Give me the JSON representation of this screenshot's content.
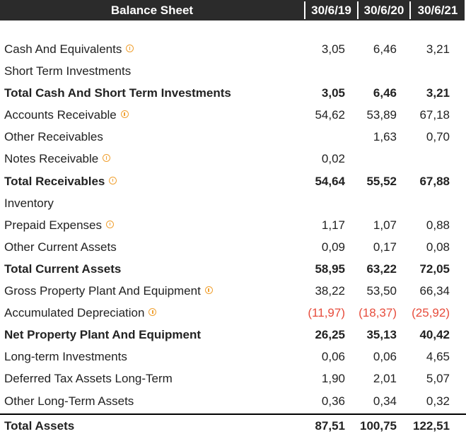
{
  "header": {
    "title": "Balance Sheet",
    "columns": [
      "30/6/19",
      "30/6/20",
      "30/6/21"
    ]
  },
  "colors": {
    "header_bg": "#2b2b2b",
    "negative": "#e74c3c",
    "info_icon": "#f0a030"
  },
  "rows": [
    {
      "label": "Cash And Equivalents",
      "info": true,
      "bold": false,
      "values": [
        "3,05",
        "6,46",
        "3,21"
      ]
    },
    {
      "label": "Short Term Investments",
      "info": false,
      "bold": false,
      "values": [
        "",
        "",
        ""
      ]
    },
    {
      "label": "Total Cash And Short Term Investments",
      "info": false,
      "bold": true,
      "values": [
        "3,05",
        "6,46",
        "3,21"
      ]
    },
    {
      "label": "Accounts Receivable",
      "info": true,
      "bold": false,
      "values": [
        "54,62",
        "53,89",
        "67,18"
      ]
    },
    {
      "label": "Other Receivables",
      "info": false,
      "bold": false,
      "values": [
        "",
        "1,63",
        "0,70"
      ]
    },
    {
      "label": "Notes Receivable",
      "info": true,
      "bold": false,
      "values": [
        "0,02",
        "",
        ""
      ]
    },
    {
      "label": "Total Receivables",
      "info": true,
      "bold": true,
      "values": [
        "54,64",
        "55,52",
        "67,88"
      ]
    },
    {
      "label": "Inventory",
      "info": false,
      "bold": false,
      "values": [
        "",
        "",
        ""
      ]
    },
    {
      "label": "Prepaid Expenses",
      "info": true,
      "bold": false,
      "values": [
        "1,17",
        "1,07",
        "0,88"
      ]
    },
    {
      "label": "Other Current Assets",
      "info": false,
      "bold": false,
      "values": [
        "0,09",
        "0,17",
        "0,08"
      ]
    },
    {
      "label": "Total Current Assets",
      "info": false,
      "bold": true,
      "values": [
        "58,95",
        "63,22",
        "72,05"
      ]
    },
    {
      "label": "Gross Property Plant And Equipment",
      "info": true,
      "bold": false,
      "values": [
        "38,22",
        "53,50",
        "66,34"
      ]
    },
    {
      "label": "Accumulated Depreciation",
      "info": true,
      "bold": false,
      "negative": true,
      "values": [
        "(11,97)",
        "(18,37)",
        "(25,92)"
      ]
    },
    {
      "label": "Net Property Plant And Equipment",
      "info": false,
      "bold": true,
      "values": [
        "26,25",
        "35,13",
        "40,42"
      ]
    },
    {
      "label": "Long-term Investments",
      "info": false,
      "bold": false,
      "values": [
        "0,06",
        "0,06",
        "4,65"
      ]
    },
    {
      "label": "Deferred Tax Assets Long-Term",
      "info": false,
      "bold": false,
      "values": [
        "1,90",
        "2,01",
        "5,07"
      ]
    },
    {
      "label": "Other Long-Term Assets",
      "info": false,
      "bold": false,
      "values": [
        "0,36",
        "0,34",
        "0,32"
      ]
    }
  ],
  "total": {
    "label": "Total Assets",
    "values": [
      "87,51",
      "100,75",
      "122,51"
    ]
  }
}
